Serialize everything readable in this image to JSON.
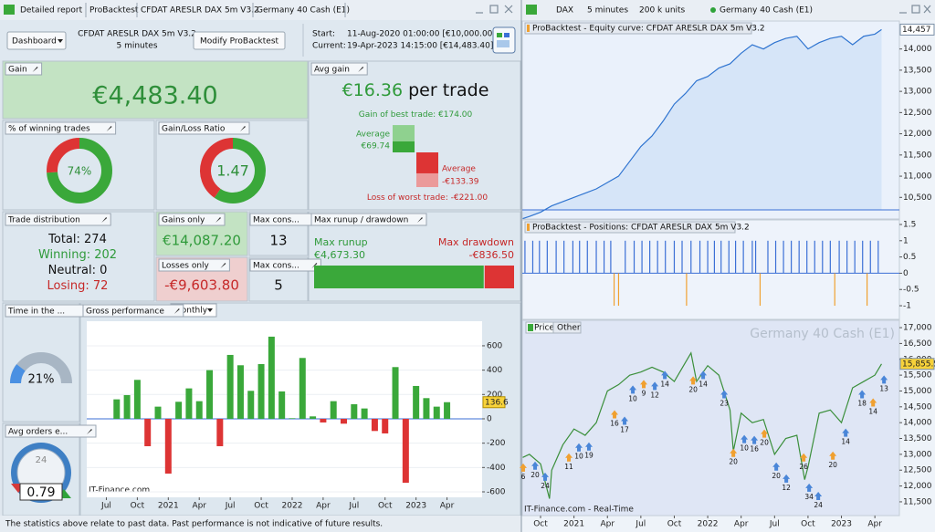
{
  "left_tabs": [
    "Detailed report",
    "ProBacktest",
    "CFDAT ARESLR DAX 5m V3.2",
    "Germany 40 Cash (E1)"
  ],
  "header": {
    "dashboard": "Dashboard",
    "system": "CFDAT ARESLR DAX 5m V3.2",
    "timeframe": "5 minutes",
    "modify": "Modify ProBacktest",
    "start_label": "Start:",
    "start": "11-Aug-2020 01:00:00 [€10,000.00]",
    "current_label": "Current:",
    "current": "19-Apr-2023 14:15:00 [€14,483.40]"
  },
  "gain": {
    "title": "Gain",
    "value": "€4,483.40"
  },
  "avg_gain": {
    "title": "Avg gain",
    "value": "€16.36",
    "unit": "per trade",
    "best_prefix": "Gain of best trade:",
    "best": 174,
    "best_label": "€174.00",
    "avg_win_title": "Average",
    "avg_win": 69.74,
    "avg_win_label": "€69.74",
    "avg_loss_title": "Average",
    "avg_loss": -133.39,
    "avg_loss_label": "-€133.39",
    "worst_prefix": "Loss of worst trade:",
    "worst": -221,
    "worst_label": "-€221.00"
  },
  "win_rate": {
    "title": "% of winning trades",
    "value": 74,
    "label": "74%"
  },
  "gl_ratio": {
    "title": "Gain/Loss Ratio",
    "value": 1.47
  },
  "trade_distribution": {
    "title": "Trade distribution",
    "rows": [
      {
        "label": "Total:",
        "value": 274
      },
      {
        "label": "Winning:",
        "value": 202
      },
      {
        "label": "Neutral:",
        "value": 0
      },
      {
        "label": "Losing:",
        "value": 72
      }
    ]
  },
  "gains_only": {
    "title": "Gains only",
    "value": "€14,087.20"
  },
  "losses_only": {
    "title": "Losses only",
    "value": "-€9,603.80"
  },
  "max_cons": [
    {
      "title": "Max cons...",
      "value": 13
    },
    {
      "title": "Max cons...",
      "value": 5
    }
  ],
  "runup": {
    "title": "Max runup / drawdown",
    "runup_title": "Max runup",
    "runup": 4673.3,
    "runup_label": "€4,673.30",
    "drawdown_title": "Max drawdown",
    "drawdown": -836.5,
    "drawdown_label": "-€836.50"
  },
  "time_in_market": {
    "title": "Time in the ...",
    "value": 21,
    "label": "21%"
  },
  "avg_orders": {
    "title": "Avg orders e...",
    "value": 0.79,
    "clock": "24"
  },
  "footer": "The statistics above relate to past data. Past performance is not indicative of future results.",
  "right_tabs": [
    "DAX",
    "5 minutes",
    "200 k units",
    "Germany 40 Cash (E1)"
  ],
  "chart_data": [
    {
      "type": "bar",
      "title": "Gross performance",
      "period": "Monthly",
      "watermark": "IT-Finance.com",
      "x": [
        0,
        1,
        2,
        3,
        4,
        5,
        6,
        7,
        8,
        9,
        10,
        11,
        12,
        13,
        14,
        15,
        16,
        17,
        18,
        19,
        20,
        21,
        22,
        23,
        24,
        25,
        26,
        27,
        28,
        29,
        30,
        31,
        32
      ],
      "values": [
        160,
        195,
        320,
        -225,
        100,
        -450,
        140,
        250,
        145,
        400,
        -225,
        525,
        440,
        230,
        450,
        675,
        225,
        5,
        500,
        20,
        -30,
        145,
        -40,
        120,
        85,
        -100,
        -120,
        425,
        -525,
        270,
        170,
        100,
        136.6
      ],
      "colors": {
        "up": "#3aa83a",
        "down": "#dd3434"
      },
      "xlim": [
        -2.9,
        35.4
      ],
      "ylim": [
        -645,
        802
      ],
      "yticks": [
        -600,
        -400,
        -200,
        0,
        200,
        400,
        600
      ],
      "xticks": [
        {
          "value": -1,
          "label": "Jul"
        },
        {
          "value": 2,
          "label": "Oct"
        },
        {
          "value": 5,
          "label": "2021"
        },
        {
          "value": 8,
          "label": "Apr"
        },
        {
          "value": 11,
          "label": "Jul"
        },
        {
          "value": 14,
          "label": "Oct"
        },
        {
          "value": 17,
          "label": "2022"
        },
        {
          "value": 20,
          "label": "Apr"
        },
        {
          "value": 23,
          "label": "Jul"
        },
        {
          "value": 26,
          "label": "Oct"
        },
        {
          "value": 29,
          "label": "2023"
        },
        {
          "value": 32,
          "label": "Apr"
        }
      ],
      "grid": true
    },
    {
      "type": "line",
      "title": "ProBacktest - Equity curve: CFDAT ARESLR DAX 5m V3.2",
      "color": "#2f74d0",
      "x": [
        0.4,
        1,
        2,
        3,
        4,
        5,
        6,
        7,
        8,
        9,
        10,
        11,
        12,
        13,
        14,
        15,
        16,
        17,
        18,
        19,
        20,
        21,
        22,
        23,
        24,
        25,
        26,
        27,
        28,
        29,
        30,
        31,
        32,
        32.6
      ],
      "values": [
        10000,
        10050,
        10150,
        10300,
        10400,
        10500,
        10600,
        10700,
        10850,
        11000,
        11350,
        11700,
        11950,
        12300,
        12700,
        12950,
        13250,
        13350,
        13550,
        13650,
        13900,
        14100,
        14000,
        14150,
        14250,
        14300,
        14000,
        14150,
        14250,
        14300,
        14100,
        14300,
        14350,
        14457
      ],
      "value_labels": [
        null,
        null,
        null,
        null,
        null,
        null,
        null,
        null,
        null,
        null,
        null,
        null,
        null,
        null,
        null,
        null,
        null,
        null,
        null,
        null,
        null,
        null,
        null,
        null,
        null,
        null,
        null,
        null,
        null,
        null,
        null,
        null,
        null,
        "14,457"
      ],
      "xlim": [
        0.36,
        34.2
      ],
      "ylim": [
        9990,
        14660
      ],
      "yticks": [
        {
          "value": 10500,
          "label": "10,500"
        },
        {
          "value": 11000,
          "label": "11,000"
        },
        {
          "value": 11500,
          "label": "11,500"
        },
        {
          "value": 12000,
          "label": "12,000"
        },
        {
          "value": 12500,
          "label": "12,500"
        },
        {
          "value": 13000,
          "label": "13,000"
        },
        {
          "value": 13500,
          "label": "13,500"
        },
        {
          "value": 14000,
          "label": "14,000"
        }
      ]
    },
    {
      "type": "positions",
      "title": "ProBacktest - Positions: CFDAT ARESLR DAX 5m V3.2",
      "x": [
        0.6,
        1.3,
        1.9,
        2.6,
        3.4,
        4.1,
        4.9,
        5.5,
        6.2,
        7.0,
        7.7,
        8.3,
        8.6,
        9.0,
        9.6,
        10.4,
        11.1,
        11.8,
        12.5,
        13.2,
        14.0,
        14.7,
        15.1,
        15.5,
        16.3,
        17.0,
        17.6,
        18.2,
        18.9,
        19.5,
        20.2,
        21.0,
        21.3,
        21.7,
        22.4,
        23.1,
        23.8,
        24.5,
        25.2,
        25.9,
        26.6,
        27.3,
        28.0,
        28.4,
        28.8,
        29.5,
        30.2,
        30.9,
        31.3,
        31.6,
        32.3
      ],
      "values": [
        1,
        1,
        1,
        1,
        1,
        1,
        1,
        1,
        1,
        1,
        1,
        1,
        -1,
        -1,
        1,
        1,
        1,
        1,
        1,
        1,
        1,
        1,
        -1,
        1,
        1,
        1,
        1,
        1,
        1,
        1,
        1,
        1,
        1,
        -1,
        1,
        1,
        1,
        1,
        1,
        1,
        1,
        1,
        1,
        -1,
        1,
        1,
        1,
        1,
        -1,
        1,
        1
      ],
      "colors": {
        "long": "#3b6fd6",
        "short": "#f0a030"
      },
      "xlim": [
        0.36,
        34.2
      ],
      "ylim": [
        -1.42,
        1.64
      ],
      "yticks": [
        1.5,
        1,
        0.5,
        0,
        -0.5,
        -1
      ]
    },
    {
      "type": "line",
      "title": "Germany 40 Cash (E1)",
      "tabs": [
        "Price",
        "Other"
      ],
      "watermark": "IT-Finance.com - Real-Time",
      "color": "#3b8f3b",
      "x": [
        0.4,
        1,
        2,
        2.8,
        3,
        4,
        5,
        6,
        7,
        8,
        9,
        10,
        11,
        12,
        13,
        14,
        15,
        15.5,
        16,
        17,
        18,
        19,
        19.3,
        20,
        21,
        22,
        23,
        24,
        25,
        25.7,
        26,
        27,
        28,
        29,
        30,
        31,
        32,
        32.6
      ],
      "values": [
        12900,
        13000,
        12700,
        11600,
        12500,
        13300,
        13800,
        13600,
        14000,
        15000,
        15200,
        15500,
        15600,
        15750,
        15600,
        15300,
        15900,
        16200,
        15300,
        15800,
        15500,
        14400,
        13100,
        14300,
        14000,
        14100,
        13000,
        13500,
        13600,
        12200,
        12600,
        14300,
        14400,
        14000,
        15100,
        15300,
        15500,
        15855.5
      ],
      "value_labels": [
        null,
        null,
        null,
        null,
        null,
        null,
        null,
        null,
        null,
        null,
        null,
        null,
        null,
        null,
        null,
        null,
        null,
        null,
        null,
        null,
        null,
        null,
        null,
        null,
        null,
        null,
        null,
        null,
        null,
        null,
        null,
        null,
        null,
        null,
        null,
        null,
        null,
        "15,855.5"
      ],
      "xlim": [
        0.36,
        34.2
      ],
      "ylim": [
        11066,
        17232
      ],
      "yticks": [
        {
          "value": 11500,
          "label": "11,500"
        },
        {
          "value": 12000,
          "label": "12,000"
        },
        {
          "value": 12500,
          "label": "12,500"
        },
        {
          "value": 13000,
          "label": "13,000"
        },
        {
          "value": 13500,
          "label": "13,500"
        },
        {
          "value": 14000,
          "label": "14,000"
        },
        {
          "value": 14500,
          "label": "14,500"
        },
        {
          "value": 15000,
          "label": "15,000"
        },
        {
          "value": 15500,
          "label": "15,500"
        },
        {
          "value": 16000,
          "label": "16,000"
        },
        {
          "value": 16500,
          "label": "16,500"
        },
        {
          "value": 17000,
          "label": "17,000"
        }
      ],
      "xticks": [
        {
          "value": 2,
          "label": "Oct"
        },
        {
          "value": 5,
          "label": "2021"
        },
        {
          "value": 8,
          "label": "Apr"
        },
        {
          "value": 11,
          "label": "Jul"
        },
        {
          "value": 14,
          "label": "Oct"
        },
        {
          "value": 17,
          "label": "2022"
        },
        {
          "value": 20,
          "label": "Apr"
        },
        {
          "value": 23,
          "label": "Jul"
        },
        {
          "value": 26,
          "label": "Oct"
        },
        {
          "value": 29,
          "label": "2023"
        },
        {
          "value": 32,
          "label": "Apr"
        }
      ],
      "trade_labels": [
        {
          "x": 0.44,
          "y": 12339,
          "label": "6"
        },
        {
          "x": 1.51,
          "y": 12397,
          "label": "20"
        },
        {
          "x": 2.41,
          "y": 12050,
          "label": "24"
        },
        {
          "x": 4.54,
          "y": 12657,
          "label": "11"
        },
        {
          "x": 5.44,
          "y": 12976,
          "label": "10"
        },
        {
          "x": 6.34,
          "y": 13005,
          "label": "19"
        },
        {
          "x": 8.64,
          "y": 14018,
          "label": "16"
        },
        {
          "x": 9.54,
          "y": 13816,
          "label": "17"
        },
        {
          "x": 10.28,
          "y": 14800,
          "label": "10"
        },
        {
          "x": 11.26,
          "y": 14974,
          "label": "9"
        },
        {
          "x": 12.25,
          "y": 14916,
          "label": "12"
        },
        {
          "x": 13.15,
          "y": 15263,
          "label": "14"
        },
        {
          "x": 15.69,
          "y": 15089,
          "label": "20"
        },
        {
          "x": 16.59,
          "y": 15263,
          "label": "14"
        },
        {
          "x": 18.48,
          "y": 14655,
          "label": "23"
        },
        {
          "x": 19.3,
          "y": 12802,
          "label": "20"
        },
        {
          "x": 20.28,
          "y": 13237,
          "label": "10"
        },
        {
          "x": 21.18,
          "y": 13208,
          "label": "16"
        },
        {
          "x": 22.08,
          "y": 13410,
          "label": "20"
        },
        {
          "x": 23.15,
          "y": 12368,
          "label": "20"
        },
        {
          "x": 24.05,
          "y": 11992,
          "label": "12"
        },
        {
          "x": 25.61,
          "y": 12657,
          "label": "26"
        },
        {
          "x": 26.1,
          "y": 11702,
          "label": "34"
        },
        {
          "x": 26.92,
          "y": 11442,
          "label": "24"
        },
        {
          "x": 28.23,
          "y": 12715,
          "label": "20"
        },
        {
          "x": 29.38,
          "y": 13439,
          "label": "14"
        },
        {
          "x": 30.85,
          "y": 14655,
          "label": "18"
        },
        {
          "x": 31.84,
          "y": 14394,
          "label": "14"
        },
        {
          "x": 32.82,
          "y": 15118,
          "label": "13"
        }
      ]
    }
  ]
}
